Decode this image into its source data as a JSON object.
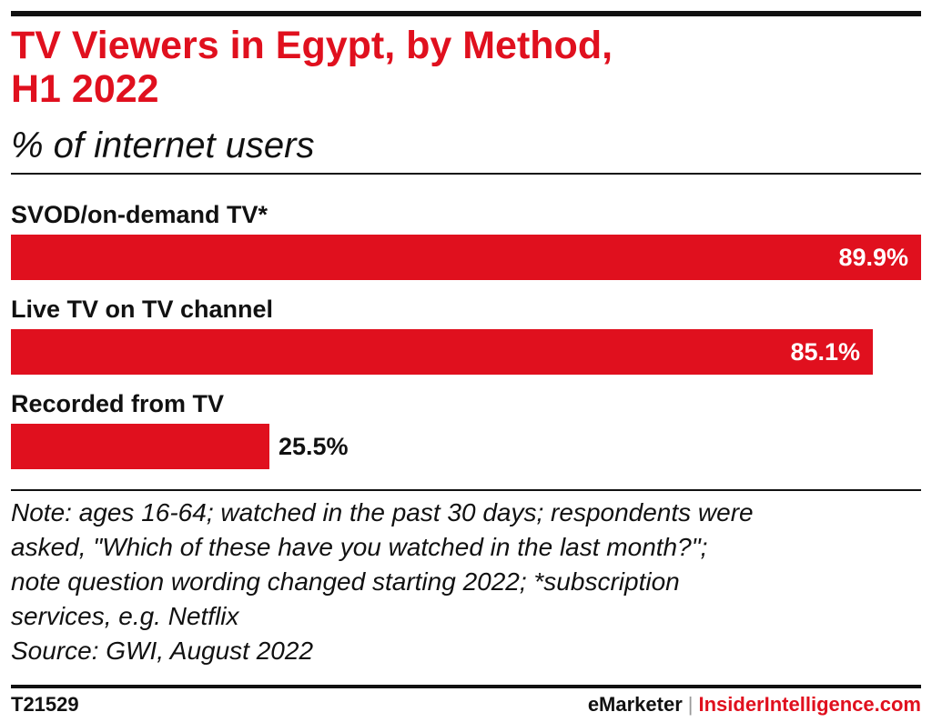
{
  "header": {
    "title_line1": "TV Viewers in Egypt, by Method,",
    "title_line2": "H1 2022",
    "subtitle": "% of internet users"
  },
  "chart_data": {
    "type": "bar",
    "orientation": "horizontal",
    "title": "TV Viewers in Egypt, by Method, H1 2022",
    "subtitle": "% of internet users",
    "categories": [
      "SVOD/on-demand TV*",
      "Live TV on TV channel",
      "Recorded from TV"
    ],
    "values": [
      89.9,
      85.1,
      25.5
    ],
    "value_labels": [
      "89.9%",
      "85.1%",
      "25.5%"
    ],
    "unit": "%",
    "xlim": [
      0,
      89.9
    ],
    "grid": false,
    "legend": "none",
    "bar_color": "#e0101e"
  },
  "note": {
    "line1": "Note: ages 16-64; watched in the past 30 days; respondents were",
    "line2": "asked, \"Which of these have you watched in the last month?\";",
    "line3": "note question wording changed starting 2022; *subscription",
    "line4": "services, e.g. Netflix",
    "source": "Source: GWI, August 2022"
  },
  "footer": {
    "chart_id": "T21529",
    "brand_left": "eMarketer",
    "separator": "|",
    "brand_right": "InsiderIntelligence.com"
  },
  "colors": {
    "accent": "#e0101e",
    "text": "#111111"
  }
}
